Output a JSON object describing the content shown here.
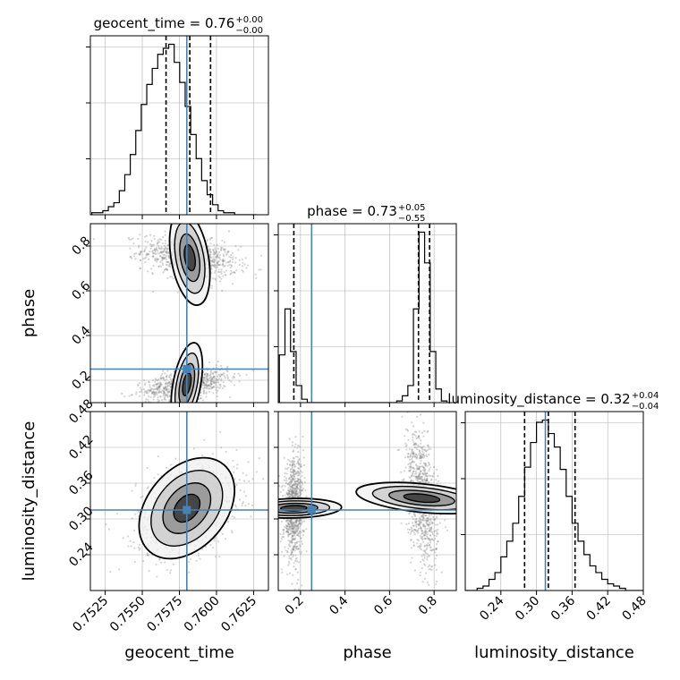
{
  "chart_data": {
    "type": "corner",
    "parameters": [
      "geocent_time",
      "phase",
      "luminosity_distance"
    ],
    "axis_labels": [
      "geocent_time",
      "phase",
      "luminosity_distance"
    ],
    "ranges": [
      [
        0.7515,
        0.7635
      ],
      [
        0.1,
        0.9
      ],
      [
        0.18,
        0.48
      ]
    ],
    "ticks": {
      "geocent_time": [
        "0.7525",
        "0.7550",
        "0.7575",
        "0.7600",
        "0.7625"
      ],
      "phase": [
        "0.2",
        "0.4",
        "0.6",
        "0.8"
      ],
      "luminosity_distance": [
        "0.24",
        "0.30",
        "0.36",
        "0.42",
        "0.48"
      ]
    },
    "truths": [
      0.758,
      0.25,
      0.315
    ],
    "titles": [
      {
        "param": "geocent_time",
        "text": "geocent_time = 0.76",
        "plus": "+0.00",
        "minus": "−0.00"
      },
      {
        "param": "phase",
        "text": "phase = 0.73",
        "plus": "+0.05",
        "minus": "−0.55"
      },
      {
        "param": "luminosity_distance",
        "text": "luminosity_distance = 0.32",
        "plus": "+0.04",
        "minus": "−0.04"
      }
    ],
    "quantiles": [
      [
        0.7566,
        0.7582,
        0.7596
      ],
      [
        0.17,
        0.73,
        0.78
      ],
      [
        0.28,
        0.32,
        0.365
      ]
    ],
    "histograms": [
      {
        "param": "geocent_time",
        "edges": [
          0.7516,
          0.75197,
          0.75234,
          0.75271,
          0.75308,
          0.75345,
          0.75382,
          0.75419,
          0.75456,
          0.75493,
          0.7553,
          0.75567,
          0.75604,
          0.75641,
          0.75678,
          0.75715,
          0.75752,
          0.75789,
          0.75826,
          0.75863,
          0.759,
          0.75937,
          0.75974,
          0.76011,
          0.76048,
          0.76085,
          0.76122,
          0.76159,
          0.76196,
          0.76233,
          0.7627
        ],
        "counts": [
          1,
          1,
          2,
          4,
          6,
          12,
          20,
          30,
          42,
          55,
          65,
          73,
          80,
          83,
          85,
          76,
          66,
          54,
          40,
          28,
          17,
          10,
          5,
          2,
          1,
          1,
          0,
          0,
          0,
          0
        ],
        "max": 85
      },
      {
        "param": "phase",
        "edges": [
          0.105,
          0.1301,
          0.1552,
          0.1803,
          0.2054,
          0.2305,
          0.2556,
          0.2807,
          0.3058,
          0.3309,
          0.356,
          0.3811,
          0.4062,
          0.4313,
          0.4564,
          0.4815,
          0.5066,
          0.5317,
          0.5568,
          0.5819,
          0.607,
          0.6321,
          0.6572,
          0.6823,
          0.7074,
          0.7325,
          0.7576,
          0.7827,
          0.8078,
          0.8329,
          0.858
        ],
        "counts": [
          28,
          55,
          30,
          10,
          2,
          0,
          0,
          0,
          0,
          0,
          0,
          0,
          0,
          0,
          0,
          0,
          0,
          0,
          0,
          0,
          0,
          1,
          4,
          10,
          55,
          100,
          82,
          30,
          8,
          1
        ],
        "max": 100
      },
      {
        "param": "luminosity_distance",
        "edges": [
          0.18,
          0.19,
          0.2,
          0.21,
          0.22,
          0.23,
          0.24,
          0.25,
          0.26,
          0.27,
          0.28,
          0.29,
          0.3,
          0.31,
          0.32,
          0.33,
          0.34,
          0.35,
          0.36,
          0.37,
          0.38,
          0.39,
          0.4,
          0.41,
          0.42,
          0.43,
          0.44,
          0.45,
          0.46,
          0.47,
          0.48
        ],
        "counts": [
          0,
          0,
          1,
          2,
          5,
          8,
          15,
          22,
          30,
          42,
          55,
          66,
          75,
          76,
          70,
          64,
          54,
          42,
          30,
          22,
          16,
          11,
          8,
          5,
          3,
          2,
          1,
          0,
          0,
          0
        ],
        "max": 76
      }
    ],
    "scatter_2d": [
      {
        "x": "geocent_time",
        "y": "phase",
        "modes": [
          {
            "cx": 0.7582,
            "cy": 0.748,
            "sx": 0.0016,
            "sy": 0.045,
            "rho": -0.35
          },
          {
            "cx": 0.758,
            "cy": 0.182,
            "sx": 0.0014,
            "sy": 0.035,
            "rho": 0.45
          }
        ]
      },
      {
        "x": "geocent_time",
        "y": "luminosity_distance",
        "modes": [
          {
            "cx": 0.758,
            "cy": 0.318,
            "sx": 0.0017,
            "sy": 0.04,
            "rho": 0.35
          }
        ]
      },
      {
        "x": "phase",
        "y": "luminosity_distance",
        "modes": [
          {
            "cx": 0.17,
            "cy": 0.318,
            "sx": 0.022,
            "sy": 0.04,
            "rho": 0.1
          },
          {
            "cx": 0.745,
            "cy": 0.335,
            "sx": 0.035,
            "sy": 0.055,
            "rho": -0.4
          }
        ]
      }
    ],
    "grid": true,
    "colors": {
      "truth": "#4682b4",
      "hist": "#000000",
      "quantile": "#000000",
      "grid": "#b0b0b0",
      "points": "#888888"
    }
  }
}
